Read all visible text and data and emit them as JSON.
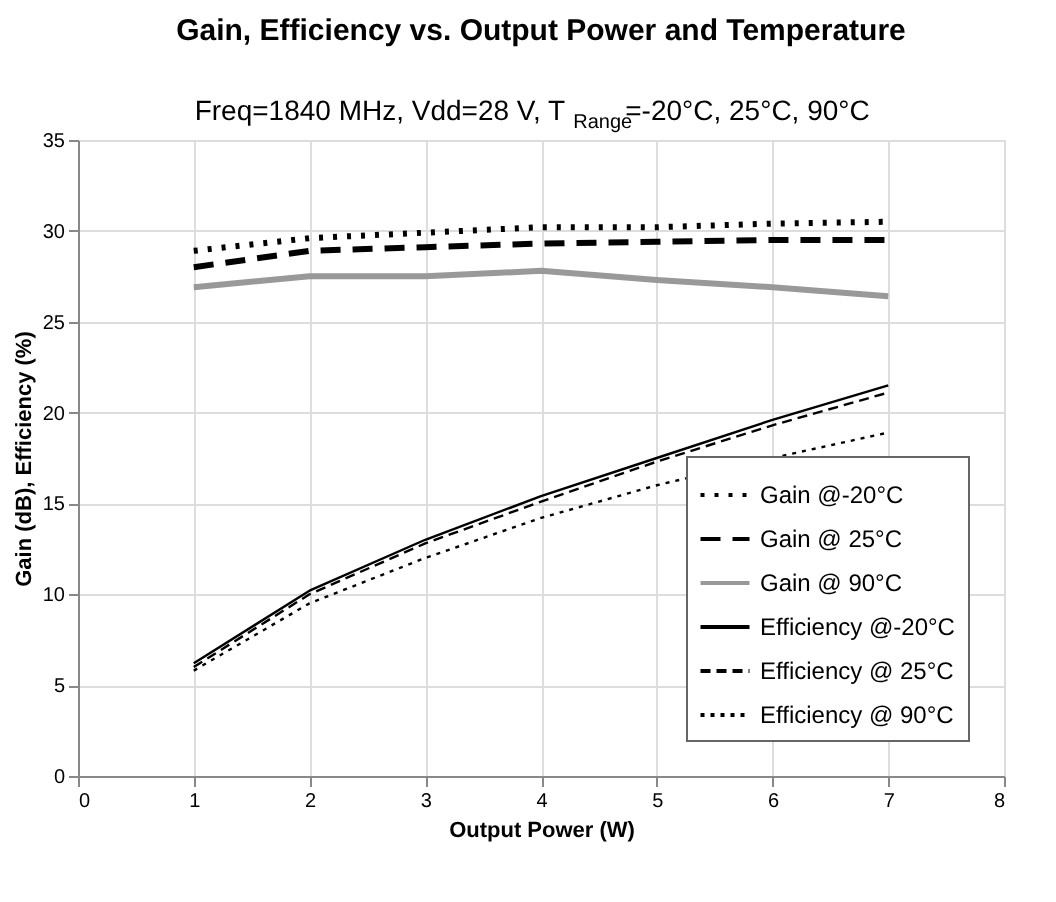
{
  "chart_data": {
    "type": "line",
    "title": "Gain, Efficiency vs. Output Power and Temperature",
    "subtitle": "Freq=1840 MHz, Vdd=28 V, T$_{Range}$=-20°C, 25°C, 90°C",
    "xlabel": "Output Power (W)",
    "ylabel": "Gain (dB), Efficiency (%)",
    "x": [
      1,
      2,
      3,
      4,
      5,
      6,
      7
    ],
    "series": [
      {
        "name": "Gain @-20°C",
        "color": "#000000",
        "line_style": "dotted",
        "values": [
          28.9,
          29.6,
          29.9,
          30.2,
          30.2,
          30.4,
          30.5
        ]
      },
      {
        "name": "Gain @ 25°C",
        "color": "#000000",
        "line_style": "dashed",
        "values": [
          28.0,
          28.9,
          29.1,
          29.3,
          29.4,
          29.5,
          29.5
        ]
      },
      {
        "name": "Gain @ 90°C",
        "color": "#999999",
        "line_style": "solid",
        "values": [
          26.9,
          27.5,
          27.5,
          27.8,
          27.3,
          26.9,
          26.4
        ]
      },
      {
        "name": "Efficiency @-20°C",
        "color": "#000000",
        "line_style": "solid",
        "values": [
          6.2,
          10.2,
          13.0,
          15.4,
          17.5,
          19.6,
          21.5
        ]
      },
      {
        "name": "Efficiency @ 25°C",
        "color": "#000000",
        "line_style": "dashed",
        "values": [
          6.0,
          10.0,
          12.8,
          15.1,
          17.3,
          19.3,
          21.1
        ]
      },
      {
        "name": "Efficiency @ 90°C",
        "color": "#000000",
        "line_style": "dotted",
        "values": [
          5.8,
          9.5,
          12.0,
          14.2,
          16.0,
          17.5,
          18.9
        ]
      }
    ],
    "xlim": [
      0,
      8
    ],
    "xticks": [
      0,
      1,
      2,
      3,
      4,
      5,
      6,
      7,
      8
    ],
    "ylim": [
      0,
      35
    ],
    "yticks": [
      0,
      5,
      10,
      15,
      20,
      25,
      30,
      35
    ],
    "grid": true,
    "legend": "bottom right",
    "marker": "none"
  }
}
